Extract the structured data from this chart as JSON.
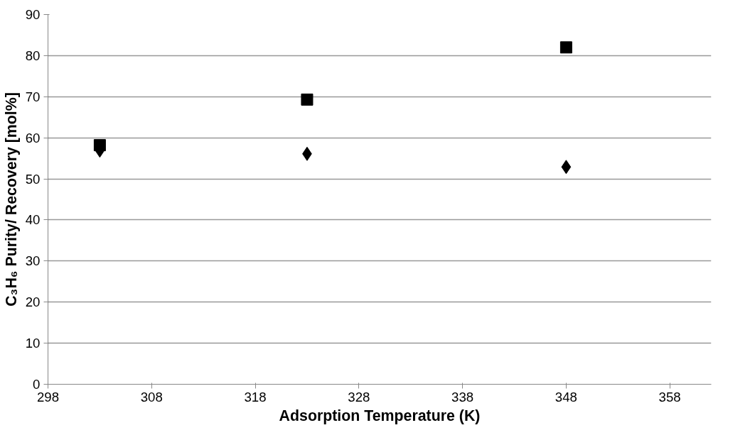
{
  "chart_data": {
    "type": "scatter",
    "xlabel": "Adsorption Temperature (K)",
    "ylabel": "C₃H₆ Purity/ Recovery [mol%]",
    "x": [
      303,
      323,
      348
    ],
    "series": [
      {
        "color": "#000000",
        "marker": "square",
        "values": [
          58.2,
          69.3,
          82.0
        ]
      },
      {
        "color": "#000000",
        "marker": "diamond",
        "values": [
          56.9,
          56.1,
          52.9
        ]
      }
    ],
    "xlim": [
      298,
      362
    ],
    "xticks": [
      298,
      308,
      318,
      328,
      338,
      348,
      358
    ],
    "ylim": [
      0,
      90
    ],
    "yticks": [
      0,
      10,
      20,
      30,
      40,
      50,
      60,
      70,
      80,
      90
    ],
    "grid": "y"
  }
}
